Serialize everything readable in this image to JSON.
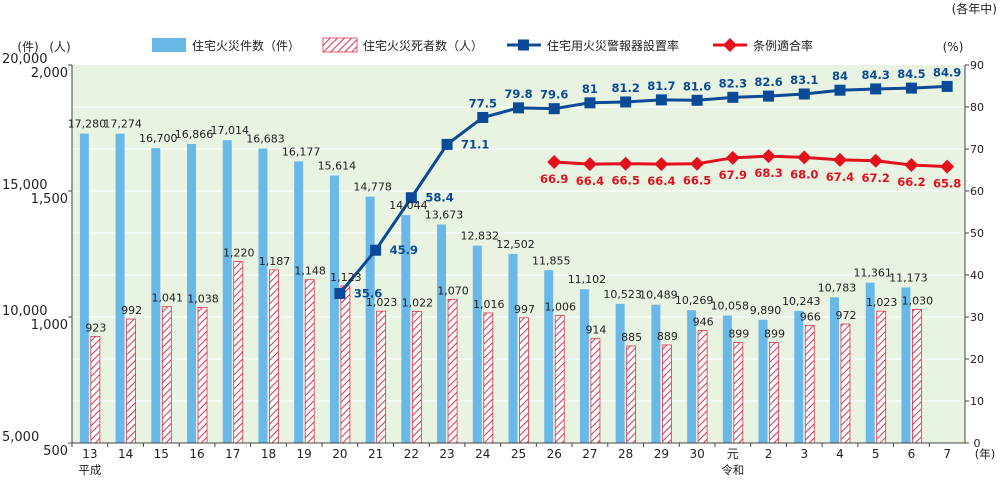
{
  "chart_data": {
    "type": "bar",
    "unit_note": "(各年中)",
    "left_axis_units": "(件)",
    "left_axis_units2": "(人)",
    "right_axis_units": "(%)",
    "x_unit": "(年)",
    "categories": [
      "13",
      "14",
      "15",
      "16",
      "17",
      "18",
      "19",
      "20",
      "21",
      "22",
      "23",
      "24",
      "25",
      "26",
      "27",
      "28",
      "29",
      "30",
      "元",
      "2",
      "3",
      "4",
      "5",
      "6",
      "7"
    ],
    "era_labels": [
      {
        "text": "平成",
        "category": "13"
      },
      {
        "text": "令和",
        "category": "元"
      }
    ],
    "left_axis_outer": {
      "ticks": [
        "20,000",
        "15,000",
        "10,000",
        "5,000"
      ],
      "ylim": [
        5000,
        20000
      ]
    },
    "left_axis_inner": {
      "ticks": [
        "2,000",
        "1,500",
        "1,000",
        "500"
      ],
      "ylim": [
        500,
        2000
      ]
    },
    "right_axis": {
      "ticks": [
        "0",
        "10",
        "20",
        "30",
        "40",
        "50",
        "60",
        "70",
        "80",
        "90"
      ],
      "ylim": [
        0,
        90
      ]
    },
    "colors": {
      "fires": "#6ab8e8",
      "deaths_stripe": "#d9344f",
      "installation": "#0b4a96",
      "compliance": "#e3101d",
      "plot_bg": "#e9f3e1",
      "grid": "#ffffff"
    },
    "series": [
      {
        "name": "住宅火災件数（件）",
        "type": "bar",
        "axis": "left_outer",
        "values": [
          17280,
          17274,
          16700,
          16866,
          17014,
          16683,
          16177,
          15614,
          14778,
          14044,
          13673,
          12832,
          12502,
          11855,
          11102,
          10523,
          10489,
          10269,
          10058,
          9890,
          10243,
          10783,
          11361,
          11173,
          null
        ],
        "labels": [
          "17,280",
          "17,274",
          "16,700",
          "16,866",
          "17,014",
          "16,683",
          "16,177",
          "15,614",
          "14,778",
          "14,044",
          "13,673",
          "12,832",
          "12,502",
          "11,855",
          "11,102",
          "10,523",
          "10,489",
          "10,269",
          "10,058",
          "9,890",
          "10,243",
          "10,783",
          "11,361",
          "11,173",
          ""
        ]
      },
      {
        "name": "住宅火災死者数（人）",
        "type": "bar",
        "axis": "left_inner",
        "values": [
          923,
          992,
          1041,
          1038,
          1220,
          1187,
          1148,
          1123,
          1023,
          1022,
          1070,
          1016,
          997,
          1006,
          914,
          885,
          889,
          946,
          899,
          899,
          966,
          972,
          1023,
          1030,
          null
        ],
        "labels": [
          "923",
          "992",
          "1,041",
          "1,038",
          "1,220",
          "1,187",
          "1,148",
          "1,123",
          "1,023",
          "1,022",
          "1,070",
          "1,016",
          "997",
          "1,006",
          "914",
          "885",
          "889",
          "946",
          "899",
          "899",
          "966",
          "972",
          "1,023",
          "1,030",
          ""
        ]
      },
      {
        "name": "住宅用火災警報器設置率",
        "type": "line",
        "axis": "right",
        "values": [
          null,
          null,
          null,
          null,
          null,
          null,
          null,
          35.6,
          45.9,
          58.4,
          71.1,
          77.5,
          79.8,
          79.6,
          81,
          81.2,
          81.7,
          81.6,
          82.3,
          82.6,
          83.1,
          84,
          84.3,
          84.5,
          84.9
        ],
        "labels": [
          "",
          "",
          "",
          "",
          "",
          "",
          "",
          "35.6",
          "45.9",
          "58.4",
          "71.1",
          "77.5",
          "79.8",
          "79.6",
          "81",
          "81.2",
          "81.7",
          "81.6",
          "82.3",
          "82.6",
          "83.1",
          "84",
          "84.3",
          "84.5",
          "84.9"
        ]
      },
      {
        "name": "条例適合率",
        "type": "line",
        "axis": "right",
        "values": [
          null,
          null,
          null,
          null,
          null,
          null,
          null,
          null,
          null,
          null,
          null,
          null,
          null,
          66.9,
          66.4,
          66.5,
          66.4,
          66.5,
          67.9,
          68.3,
          68.0,
          67.4,
          67.2,
          66.2,
          65.8
        ],
        "labels": [
          "",
          "",
          "",
          "",
          "",
          "",
          "",
          "",
          "",
          "",
          "",
          "",
          "",
          "66.9",
          "66.4",
          "66.5",
          "66.4",
          "66.5",
          "67.9",
          "68.3",
          "68.0",
          "67.4",
          "67.2",
          "66.2",
          "65.8"
        ]
      }
    ],
    "legend_position": "top",
    "grid": true
  }
}
